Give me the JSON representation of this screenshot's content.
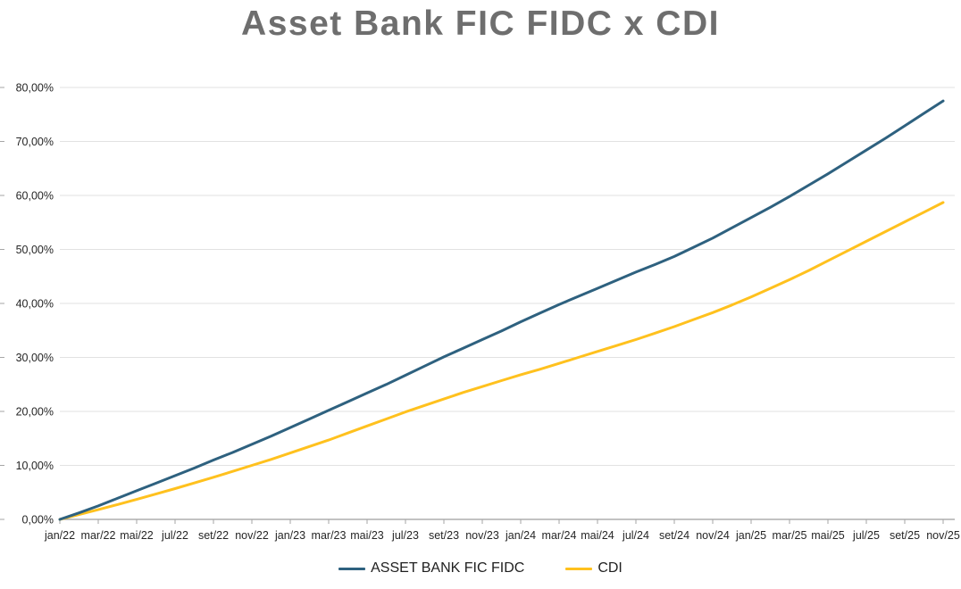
{
  "header": {
    "title": "Asset Bank FIC FIDC x CDI"
  },
  "colors": {
    "title": "#6e6e6e",
    "gridline": "#e2e2e2",
    "axis_line": "#9e9e9e",
    "tick": "#a6a6a6",
    "tick_label": "#262626",
    "asset_line": "#2e617f",
    "cdi_line": "#ffc11e"
  },
  "chart_data": {
    "type": "line",
    "title": "Asset Bank FIC FIDC x CDI",
    "xlabel": "",
    "ylabel": "",
    "ylim": [
      0,
      80
    ],
    "y_step": 10,
    "grid": true,
    "legend_position": "bottom",
    "y_tick_labels": [
      "0,00%",
      "10,00%",
      "20,00%",
      "30,00%",
      "40,00%",
      "50,00%",
      "60,00%",
      "70,00%",
      "80,00%"
    ],
    "x_tick_labels": [
      "jan/22",
      "mar/22",
      "mai/22",
      "jul/22",
      "set/22",
      "nov/22",
      "jan/23",
      "mar/23",
      "mai/23",
      "jul/23",
      "set/23",
      "nov/23",
      "jan/24",
      "mar/24",
      "mai/24",
      "jul/24",
      "set/24",
      "nov/24",
      "jan/25",
      "mar/25",
      "mai/25",
      "jul/25",
      "set/25",
      "nov/25"
    ],
    "x": [
      "jan/22",
      "fev/22",
      "mar/22",
      "abr/22",
      "mai/22",
      "jun/22",
      "jul/22",
      "ago/22",
      "set/22",
      "out/22",
      "nov/22",
      "dez/22",
      "jan/23",
      "fev/23",
      "mar/23",
      "abr/23",
      "mai/23",
      "jun/23",
      "jul/23",
      "ago/23",
      "set/23",
      "out/23",
      "nov/23",
      "dez/23",
      "jan/24",
      "fev/24",
      "mar/24",
      "abr/24",
      "mai/24",
      "jun/24",
      "jul/24",
      "ago/24",
      "set/24",
      "out/24",
      "nov/24",
      "dez/24",
      "jan/25",
      "fev/25",
      "mar/25",
      "abr/25",
      "mai/25",
      "jun/25",
      "jul/25",
      "ago/25",
      "set/25",
      "out/25",
      "nov/25"
    ],
    "series": [
      {
        "name": "ASSET BANK FIC FIDC",
        "color": "#2e617f",
        "values": [
          0.0,
          1.2,
          2.5,
          3.9,
          5.3,
          6.7,
          8.1,
          9.5,
          11.0,
          12.4,
          13.9,
          15.4,
          17.0,
          18.6,
          20.2,
          21.8,
          23.4,
          25.0,
          26.7,
          28.4,
          30.1,
          31.7,
          33.3,
          34.9,
          36.6,
          38.2,
          39.8,
          41.3,
          42.8,
          44.3,
          45.8,
          47.2,
          48.7,
          50.4,
          52.1,
          54.0,
          55.9,
          57.8,
          59.8,
          61.9,
          64.0,
          66.2,
          68.4,
          70.6,
          72.9,
          75.2,
          77.5
        ]
      },
      {
        "name": "CDI",
        "color": "#ffc11e",
        "values": [
          0.0,
          0.9,
          1.8,
          2.75,
          3.7,
          4.7,
          5.7,
          6.75,
          7.8,
          8.9,
          10.0,
          11.1,
          12.3,
          13.5,
          14.7,
          16.0,
          17.3,
          18.6,
          19.9,
          21.1,
          22.3,
          23.5,
          24.6,
          25.7,
          26.8,
          27.8,
          28.9,
          30.0,
          31.1,
          32.2,
          33.3,
          34.5,
          35.7,
          37.0,
          38.3,
          39.7,
          41.2,
          42.8,
          44.4,
          46.1,
          47.9,
          49.7,
          51.5,
          53.3,
          55.1,
          56.9,
          58.7
        ]
      }
    ]
  }
}
